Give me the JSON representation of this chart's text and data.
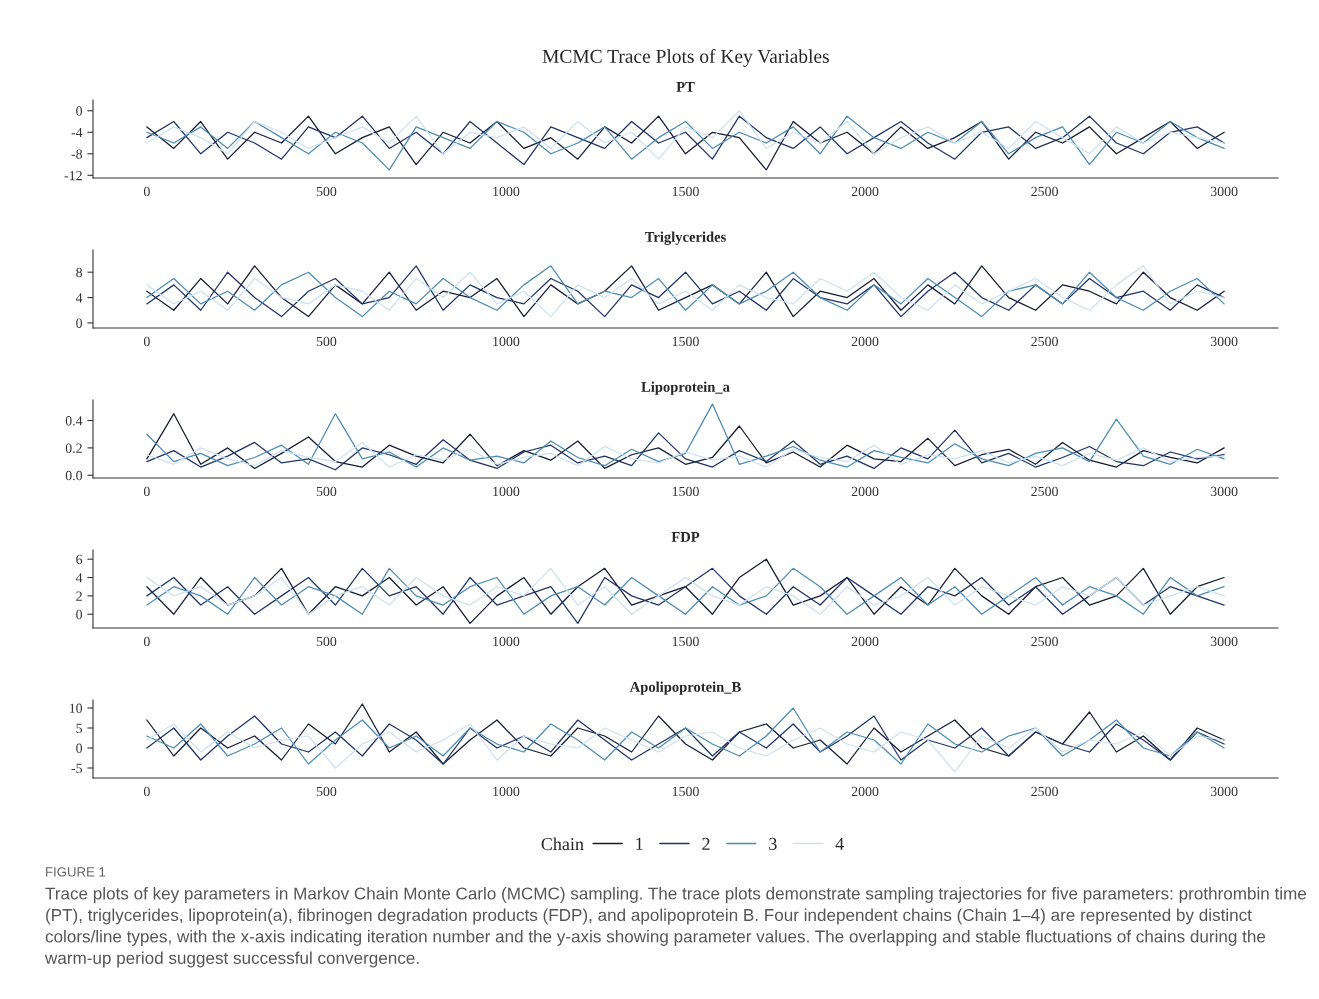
{
  "chart_data": [
    {
      "type": "line",
      "title": "PT",
      "annotations": [
        "MCMC Trace Plots of Key Variables"
      ],
      "x": [
        0,
        75,
        150,
        225,
        300,
        375,
        450,
        525,
        600,
        675,
        750,
        825,
        900,
        975,
        1050,
        1125,
        1200,
        1275,
        1350,
        1425,
        1500,
        1575,
        1650,
        1725,
        1800,
        1875,
        1950,
        2025,
        2100,
        2175,
        2250,
        2325,
        2400,
        2475,
        2550,
        2625,
        2700,
        2775,
        2850,
        2925,
        3000
      ],
      "xlim": [
        -150,
        3150
      ],
      "xticks": [
        0,
        500,
        1000,
        1500,
        2000,
        2500,
        3000
      ],
      "ylim": [
        -12.5,
        2
      ],
      "yticks": [
        -12,
        -8,
        -4,
        0
      ],
      "series": [
        {
          "color": "#141a33",
          "values": [
            -3,
            -7,
            -2,
            -9,
            -4,
            -6,
            -1,
            -8,
            -5,
            -3,
            -10,
            -4,
            -6,
            -2,
            -7,
            -5,
            -9,
            -3,
            -6,
            -1,
            -8,
            -4,
            -5,
            -11,
            -2,
            -6,
            -4,
            -8,
            -3,
            -7,
            -5,
            -2,
            -9,
            -4,
            -6,
            -3,
            -8,
            -5,
            -2,
            -7,
            -4
          ]
        },
        {
          "color": "#1f3366",
          "values": [
            -5,
            -2,
            -8,
            -4,
            -6,
            -9,
            -3,
            -5,
            -1,
            -7,
            -4,
            -8,
            -2,
            -6,
            -10,
            -3,
            -5,
            -7,
            -2,
            -6,
            -4,
            -9,
            -1,
            -5,
            -7,
            -3,
            -8,
            -5,
            -2,
            -6,
            -9,
            -4,
            -3,
            -7,
            -5,
            -1,
            -6,
            -8,
            -4,
            -3,
            -6
          ]
        },
        {
          "color": "#4d8cb3",
          "values": [
            -4,
            -6,
            -3,
            -7,
            -2,
            -5,
            -8,
            -4,
            -6,
            -11,
            -3,
            -5,
            -7,
            -2,
            -4,
            -8,
            -6,
            -3,
            -9,
            -5,
            -2,
            -7,
            -4,
            -6,
            -3,
            -8,
            -1,
            -5,
            -7,
            -4,
            -6,
            -2,
            -8,
            -5,
            -3,
            -10,
            -4,
            -6,
            -2,
            -5,
            -7
          ]
        },
        {
          "color": "#cde2ef",
          "values": [
            -6,
            -3,
            -5,
            -8,
            -2,
            -4,
            -7,
            -5,
            -3,
            -6,
            -1,
            -8,
            -4,
            -5,
            -3,
            -7,
            -2,
            -6,
            -4,
            -9,
            -3,
            -5,
            0,
            -7,
            -4,
            -6,
            -2,
            -8,
            -5,
            -3,
            -6,
            -4,
            -7,
            -2,
            -5,
            -8,
            -3,
            -6,
            -4,
            -5,
            -6
          ]
        }
      ]
    },
    {
      "type": "line",
      "title": "Triglycerides",
      "x": [
        0,
        75,
        150,
        225,
        300,
        375,
        450,
        525,
        600,
        675,
        750,
        825,
        900,
        975,
        1050,
        1125,
        1200,
        1275,
        1350,
        1425,
        1500,
        1575,
        1650,
        1725,
        1800,
        1875,
        1950,
        2025,
        2100,
        2175,
        2250,
        2325,
        2400,
        2475,
        2550,
        2625,
        2700,
        2775,
        2850,
        2925,
        3000
      ],
      "xlim": [
        -150,
        3150
      ],
      "xticks": [
        0,
        500,
        1000,
        1500,
        2000,
        2500,
        3000
      ],
      "ylim": [
        -0.8,
        11.5
      ],
      "yticks": [
        0,
        4,
        8
      ],
      "series": [
        {
          "color": "#141a33",
          "values": [
            5,
            2,
            7,
            3,
            9,
            4,
            1,
            6,
            3,
            8,
            2,
            5,
            4,
            7,
            1,
            6,
            3,
            5,
            9,
            2,
            4,
            6,
            3,
            8,
            1,
            5,
            4,
            7,
            2,
            6,
            3,
            9,
            4,
            2,
            6,
            5,
            3,
            8,
            4,
            2,
            5
          ]
        },
        {
          "color": "#1f3366",
          "values": [
            3,
            6,
            2,
            8,
            4,
            1,
            5,
            7,
            3,
            4,
            9,
            2,
            6,
            4,
            3,
            7,
            5,
            1,
            6,
            4,
            8,
            3,
            5,
            2,
            7,
            4,
            3,
            6,
            1,
            5,
            8,
            4,
            2,
            6,
            3,
            7,
            4,
            5,
            2,
            6,
            4
          ]
        },
        {
          "color": "#4d8cb3",
          "values": [
            4,
            7,
            3,
            5,
            2,
            6,
            8,
            4,
            1,
            5,
            3,
            7,
            4,
            2,
            6,
            9,
            3,
            5,
            4,
            7,
            2,
            6,
            3,
            5,
            8,
            4,
            2,
            6,
            3,
            7,
            4,
            1,
            5,
            6,
            3,
            8,
            4,
            2,
            5,
            7,
            3
          ]
        },
        {
          "color": "#cde2ef",
          "values": [
            6,
            3,
            5,
            2,
            7,
            4,
            3,
            6,
            5,
            2,
            7,
            4,
            8,
            3,
            5,
            1,
            6,
            4,
            7,
            3,
            5,
            2,
            6,
            4,
            3,
            7,
            5,
            8,
            4,
            2,
            6,
            3,
            5,
            7,
            4,
            2,
            6,
            9,
            3,
            5,
            4
          ]
        }
      ]
    },
    {
      "type": "line",
      "title": "Lipoprotein_a",
      "x": [
        0,
        75,
        150,
        225,
        300,
        375,
        450,
        525,
        600,
        675,
        750,
        825,
        900,
        975,
        1050,
        1125,
        1200,
        1275,
        1350,
        1425,
        1500,
        1575,
        1650,
        1725,
        1800,
        1875,
        1950,
        2025,
        2100,
        2175,
        2250,
        2325,
        2400,
        2475,
        2550,
        2625,
        2700,
        2775,
        2850,
        2925,
        3000
      ],
      "xlim": [
        -150,
        3150
      ],
      "xticks": [
        0,
        500,
        1000,
        1500,
        2000,
        2500,
        3000
      ],
      "ylim": [
        -0.02,
        0.55
      ],
      "yticks": [
        {
          "value": 0,
          "label": "0.0"
        },
        0.2,
        0.4
      ],
      "series": [
        {
          "color": "#141a33",
          "values": [
            0.12,
            0.45,
            0.08,
            0.2,
            0.05,
            0.16,
            0.28,
            0.1,
            0.06,
            0.22,
            0.14,
            0.09,
            0.3,
            0.07,
            0.18,
            0.11,
            0.25,
            0.05,
            0.15,
            0.2,
            0.08,
            0.13,
            0.36,
            0.09,
            0.17,
            0.06,
            0.22,
            0.12,
            0.1,
            0.27,
            0.07,
            0.15,
            0.19,
            0.08,
            0.24,
            0.11,
            0.06,
            0.18,
            0.13,
            0.09,
            0.2
          ]
        },
        {
          "color": "#1f3366",
          "values": [
            0.1,
            0.18,
            0.06,
            0.14,
            0.24,
            0.09,
            0.12,
            0.04,
            0.2,
            0.15,
            0.08,
            0.26,
            0.11,
            0.05,
            0.17,
            0.22,
            0.09,
            0.14,
            0.07,
            0.31,
            0.12,
            0.06,
            0.18,
            0.1,
            0.25,
            0.08,
            0.14,
            0.05,
            0.2,
            0.12,
            0.33,
            0.09,
            0.16,
            0.06,
            0.13,
            0.21,
            0.1,
            0.07,
            0.17,
            0.12,
            0.15
          ]
        },
        {
          "color": "#4d8cb3",
          "values": [
            0.3,
            0.1,
            0.16,
            0.07,
            0.13,
            0.22,
            0.08,
            0.45,
            0.12,
            0.17,
            0.06,
            0.2,
            0.11,
            0.14,
            0.09,
            0.25,
            0.13,
            0.07,
            0.19,
            0.1,
            0.16,
            0.52,
            0.08,
            0.14,
            0.21,
            0.11,
            0.06,
            0.18,
            0.13,
            0.09,
            0.23,
            0.12,
            0.07,
            0.16,
            0.2,
            0.1,
            0.41,
            0.14,
            0.08,
            0.19,
            0.12
          ]
        },
        {
          "color": "#cde2ef",
          "values": [
            0.15,
            0.08,
            0.2,
            0.12,
            0.07,
            0.18,
            0.13,
            0.1,
            0.24,
            0.06,
            0.15,
            0.11,
            0.19,
            0.08,
            0.13,
            0.16,
            0.07,
            0.21,
            0.12,
            0.09,
            0.17,
            0.11,
            0.14,
            0.06,
            0.19,
            0.13,
            0.1,
            0.22,
            0.08,
            0.15,
            0.12,
            0.18,
            0.09,
            0.14,
            0.07,
            0.16,
            0.11,
            0.2,
            0.1,
            0.13,
            0.14
          ]
        }
      ]
    },
    {
      "type": "line",
      "title": "FDP",
      "x": [
        0,
        75,
        150,
        225,
        300,
        375,
        450,
        525,
        600,
        675,
        750,
        825,
        900,
        975,
        1050,
        1125,
        1200,
        1275,
        1350,
        1425,
        1500,
        1575,
        1650,
        1725,
        1800,
        1875,
        1950,
        2025,
        2100,
        2175,
        2250,
        2325,
        2400,
        2475,
        2550,
        2625,
        2700,
        2775,
        2850,
        2925,
        3000
      ],
      "xlim": [
        -150,
        3150
      ],
      "xticks": [
        0,
        500,
        1000,
        1500,
        2000,
        2500,
        3000
      ],
      "ylim": [
        -1.5,
        7
      ],
      "yticks": [
        0,
        2,
        4,
        6
      ],
      "series": [
        {
          "color": "#141a33",
          "values": [
            3,
            0,
            4,
            1,
            2,
            5,
            0,
            3,
            2,
            4,
            1,
            3,
            -1,
            2,
            4,
            0,
            3,
            5,
            1,
            2,
            3,
            0,
            4,
            6,
            1,
            2,
            4,
            0,
            3,
            1,
            5,
            2,
            0,
            3,
            4,
            1,
            2,
            5,
            0,
            3,
            4
          ]
        },
        {
          "color": "#1f3366",
          "values": [
            2,
            4,
            1,
            3,
            0,
            2,
            4,
            1,
            5,
            2,
            3,
            0,
            4,
            1,
            2,
            3,
            -1,
            4,
            2,
            1,
            3,
            5,
            2,
            0,
            3,
            1,
            4,
            2,
            0,
            3,
            2,
            4,
            1,
            3,
            0,
            2,
            4,
            1,
            3,
            2,
            1
          ]
        },
        {
          "color": "#4d8cb3",
          "values": [
            1,
            3,
            2,
            0,
            4,
            1,
            3,
            2,
            0,
            5,
            2,
            1,
            3,
            4,
            0,
            2,
            3,
            1,
            4,
            2,
            0,
            3,
            1,
            2,
            5,
            3,
            0,
            2,
            4,
            1,
            3,
            0,
            2,
            4,
            1,
            3,
            2,
            0,
            4,
            2,
            3
          ]
        },
        {
          "color": "#cde2ef",
          "values": [
            4,
            2,
            3,
            1,
            2,
            4,
            0,
            2,
            3,
            1,
            4,
            2,
            1,
            3,
            2,
            5,
            1,
            3,
            0,
            2,
            4,
            2,
            1,
            3,
            2,
            0,
            3,
            1,
            2,
            4,
            1,
            3,
            2,
            1,
            3,
            2,
            4,
            1,
            2,
            3,
            2
          ]
        }
      ]
    },
    {
      "type": "line",
      "title": "Apolipoprotein_B",
      "legend": "bottom",
      "legend_title": "Chain",
      "annotations": [
        "FIGURE 1",
        "Trace plots of key parameters in Markov Chain Monte Carlo (MCMC) sampling. The trace plots demonstrate sampling trajectories for five parameters: prothrombin time (PT), triglycerides, lipoprotein(a), fibrinogen degradation products (FDP), and apolipoprotein B. Four independent chains (Chain 1–4) are represented by distinct colors/line types, with the x-axis indicating iteration number and the y-axis showing parameter values. The overlapping and stable fluctuations of chains during the warm-up period suggest successful convergence."
      ],
      "x": [
        0,
        75,
        150,
        225,
        300,
        375,
        450,
        525,
        600,
        675,
        750,
        825,
        900,
        975,
        1050,
        1125,
        1200,
        1275,
        1350,
        1425,
        1500,
        1575,
        1650,
        1725,
        1800,
        1875,
        1950,
        2025,
        2100,
        2175,
        2250,
        2325,
        2400,
        2475,
        2550,
        2625,
        2700,
        2775,
        2850,
        2925,
        3000
      ],
      "xlim": [
        -150,
        3150
      ],
      "xticks": [
        0,
        500,
        1000,
        1500,
        2000,
        2500,
        3000
      ],
      "ylim": [
        -7.5,
        12
      ],
      "yticks": [
        -5,
        0,
        5,
        10
      ],
      "series": [
        {
          "name": "1",
          "color": "#141a33",
          "values": [
            7,
            -2,
            5,
            0,
            3,
            -3,
            6,
            1,
            11,
            -1,
            4,
            -4,
            2,
            7,
            0,
            -2,
            5,
            3,
            -1,
            8,
            1,
            -3,
            4,
            6,
            0,
            2,
            -4,
            5,
            -1,
            3,
            7,
            0,
            -2,
            4,
            1,
            9,
            -1,
            3,
            -3,
            5,
            2
          ]
        },
        {
          "name": "2",
          "color": "#1f3366",
          "values": [
            0,
            5,
            -3,
            3,
            8,
            1,
            -1,
            4,
            -2,
            6,
            2,
            -4,
            5,
            0,
            3,
            -1,
            7,
            2,
            -3,
            1,
            5,
            -2,
            4,
            0,
            6,
            -1,
            3,
            8,
            -3,
            2,
            0,
            5,
            -2,
            4,
            1,
            -1,
            6,
            2,
            -3,
            4,
            1
          ]
        },
        {
          "name": "3",
          "color": "#4d8cb3",
          "values": [
            3,
            0,
            6,
            -2,
            1,
            5,
            -4,
            2,
            7,
            0,
            3,
            -2,
            5,
            1,
            -1,
            6,
            2,
            -3,
            4,
            0,
            5,
            1,
            -2,
            3,
            10,
            -1,
            4,
            2,
            -4,
            6,
            1,
            -1,
            3,
            5,
            -2,
            2,
            7,
            0,
            -2,
            4,
            0
          ]
        },
        {
          "name": "4",
          "color": "#cde2ef",
          "values": [
            2,
            6,
            -1,
            4,
            0,
            2,
            3,
            -5,
            1,
            4,
            -1,
            2,
            6,
            -3,
            3,
            1,
            0,
            5,
            2,
            -1,
            3,
            4,
            0,
            -2,
            2,
            5,
            1,
            -1,
            4,
            2,
            -6,
            3,
            0,
            5,
            -1,
            2,
            1,
            4,
            -2,
            3,
            2
          ]
        }
      ]
    }
  ]
}
